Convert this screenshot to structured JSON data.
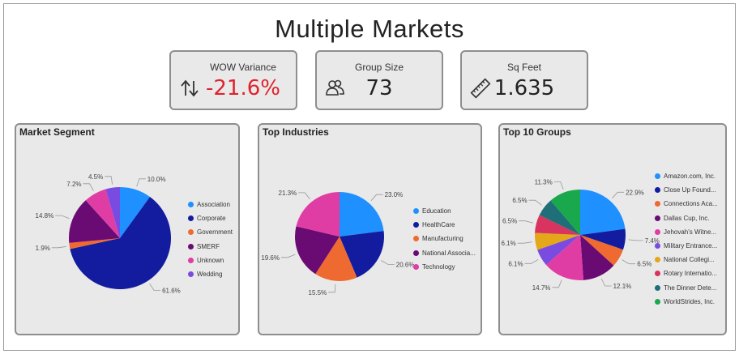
{
  "title": "Multiple Markets",
  "cards": [
    {
      "label": "WOW Variance",
      "value": "-21.6%",
      "value_color": "#e0222d",
      "icon": "up-down-arrows-icon"
    },
    {
      "label": "Group Size",
      "value": "73",
      "value_color": "#222222",
      "icon": "people-icon"
    },
    {
      "label": "Sq Feet",
      "value": "1.635",
      "value_color": "#222222",
      "icon": "ruler-icon"
    }
  ],
  "chart_data": [
    {
      "type": "pie",
      "title": "Market Segment",
      "categories": [
        "Association",
        "Corporate",
        "Government",
        "SMERF",
        "Unknown",
        "Wedding"
      ],
      "values": [
        10.0,
        61.6,
        1.9,
        14.8,
        7.2,
        4.5
      ],
      "labels": [
        "10.0%",
        "61.6%",
        "1.9%",
        "14.8%",
        "7.2%",
        "4.5%"
      ],
      "colors": [
        "#1e90ff",
        "#131c9e",
        "#ef6a30",
        "#6a0a73",
        "#e03da4",
        "#7a4be0"
      ],
      "legend": "right"
    },
    {
      "type": "pie",
      "title": "Top Industries",
      "categories": [
        "Education",
        "HealthCare",
        "Manufacturing",
        "National Associa...",
        "Technology"
      ],
      "values": [
        23.0,
        20.6,
        15.5,
        19.6,
        21.3
      ],
      "labels": [
        "23.0%",
        "20.6%",
        "15.5%",
        "19.6%",
        "21.3%"
      ],
      "colors": [
        "#1e90ff",
        "#131c9e",
        "#ef6a30",
        "#6a0a73",
        "#e03da4"
      ],
      "legend": "right"
    },
    {
      "type": "pie",
      "title": "Top 10 Groups",
      "categories": [
        "Amazon.com, Inc.",
        "Close Up Found...",
        "Connections Aca...",
        "Dallas Cup, Inc.",
        "Jehovah's Witne...",
        "Military Entrance...",
        "National Collegi...",
        "Rotary Internatio...",
        "The Dinner Dete...",
        "WorldStrides, Inc."
      ],
      "values": [
        22.9,
        7.4,
        6.5,
        12.1,
        14.7,
        6.1,
        6.1,
        6.5,
        6.5,
        11.3
      ],
      "labels": [
        "22.9%",
        "7.4%",
        "6.5%",
        "12.1%",
        "14.7%",
        "6.1%",
        "6.1%",
        "6.5%",
        "6.5%",
        "11.3%"
      ],
      "colors": [
        "#1e90ff",
        "#131c9e",
        "#ef6a30",
        "#6a0a73",
        "#e03da4",
        "#7a4be0",
        "#e3a719",
        "#d8345f",
        "#1e6f78",
        "#1aa84c"
      ],
      "legend": "right"
    }
  ]
}
